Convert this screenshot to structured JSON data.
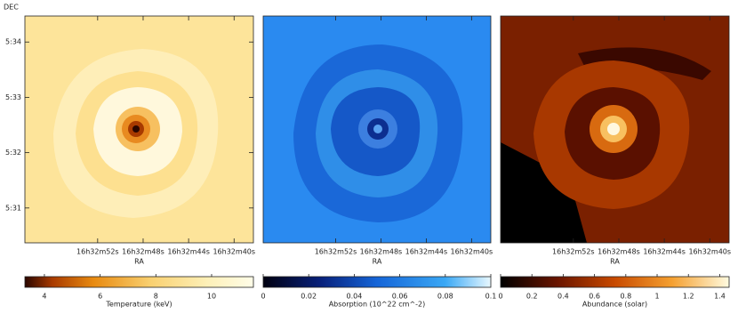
{
  "chart_data": [
    {
      "type": "map",
      "x_label": "RA",
      "y_label": "DEC",
      "xlim": [
        58.4,
        38.3
      ],
      "xticks": [
        {
          "value": 52,
          "label": "16h32m52s"
        },
        {
          "value": 48,
          "label": "16h32m48s"
        },
        {
          "value": 44,
          "label": "16h32m44s"
        },
        {
          "value": 40,
          "label": "16h32m40s"
        }
      ],
      "ylim": [
        30.37,
        34.47
      ],
      "yticks": [
        {
          "value": 34,
          "label": "5:34"
        },
        {
          "value": 33,
          "label": "5:33"
        },
        {
          "value": 32,
          "label": "5:32"
        },
        {
          "value": 31,
          "label": "5:31"
        }
      ],
      "colorbar": {
        "label": "Temperature (keV)",
        "lim": [
          3.3,
          11.5
        ],
        "ticks": [
          4,
          6,
          8,
          10
        ]
      }
    },
    {
      "type": "map",
      "x_label": "RA",
      "xlim": [
        58.4,
        38.3
      ],
      "xticks": [
        {
          "value": 52,
          "label": "16h32m52s"
        },
        {
          "value": 48,
          "label": "16h32m48s"
        },
        {
          "value": 44,
          "label": "16h32m44s"
        },
        {
          "value": 40,
          "label": "16h32m40s"
        }
      ],
      "ylim": [
        30.37,
        34.47
      ],
      "colorbar": {
        "label": "Absorption (10^22 cm^-2)",
        "lim": [
          0,
          0.1
        ],
        "ticks": [
          0,
          0.02,
          0.04,
          0.06,
          0.08,
          0.1
        ]
      }
    },
    {
      "type": "map",
      "x_label": "RA",
      "xlim": [
        58.4,
        38.3
      ],
      "xticks": [
        {
          "value": 52,
          "label": "16h32m52s"
        },
        {
          "value": 48,
          "label": "16h32m48s"
        },
        {
          "value": 44,
          "label": "16h32m44s"
        },
        {
          "value": 40,
          "label": "16h32m40s"
        }
      ],
      "ylim": [
        30.37,
        34.47
      ],
      "colorbar": {
        "label": "Abundance (solar)",
        "lim": [
          0,
          1.46
        ],
        "ticks": [
          0,
          0.2,
          0.4,
          0.6,
          0.8,
          1,
          1.2,
          1.4
        ]
      }
    }
  ]
}
